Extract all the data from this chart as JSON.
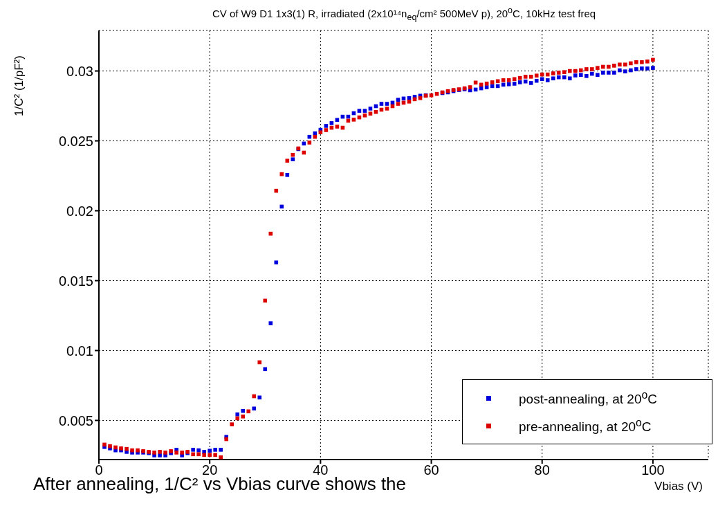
{
  "chart_data": {
    "type": "scatter",
    "title": "CV of W9 D1 1x3(1) R, irradiated (2x10¹⁴n$_{eq}$/cm² 500MeV p), 20$^{o}$C, 10kHz test freq",
    "xlabel": "Vbias (V)",
    "ylabel": "1/C² (1/pF²)",
    "annotations": [
      "After annealing, 1/C² vs Vbias curve shows the"
    ],
    "x": [
      1,
      2,
      3,
      4,
      5,
      6,
      7,
      8,
      9,
      10,
      11,
      12,
      13,
      14,
      15,
      16,
      17,
      18,
      19,
      20,
      21,
      22,
      23,
      24,
      25,
      26,
      27,
      28,
      29,
      30,
      31,
      32,
      33,
      34,
      35,
      36,
      37,
      38,
      39,
      40,
      41,
      42,
      43,
      44,
      45,
      46,
      47,
      48,
      49,
      50,
      51,
      52,
      53,
      54,
      55,
      56,
      57,
      58,
      59,
      60,
      61,
      62,
      63,
      64,
      65,
      66,
      67,
      68,
      69,
      70,
      71,
      72,
      73,
      74,
      75,
      76,
      77,
      78,
      79,
      80,
      81,
      82,
      83,
      84,
      85,
      86,
      87,
      88,
      89,
      90,
      91,
      92,
      93,
      94,
      95,
      96,
      97,
      98,
      99,
      100
    ],
    "series": [
      {
        "name": "post-annealing, at 20$^{o}$C",
        "color": "#0000dd",
        "values": [
          0.0031,
          0.003,
          0.00286,
          0.00286,
          0.00275,
          0.0027,
          0.0027,
          0.0027,
          0.00266,
          0.0025,
          0.0025,
          0.0025,
          0.00266,
          0.0029,
          0.0025,
          0.00266,
          0.0029,
          0.00286,
          0.00275,
          0.00283,
          0.0029,
          0.0029,
          0.00382,
          null,
          0.00543,
          0.00568,
          null,
          0.00585,
          0.00664,
          0.00867,
          0.01195,
          0.0163,
          0.0203,
          0.02256,
          0.02368,
          0.02441,
          0.02481,
          0.02529,
          0.02554,
          0.02579,
          0.02607,
          0.02627,
          0.0265,
          0.02673,
          0.02673,
          0.02698,
          0.02715,
          0.02715,
          0.02731,
          0.02748,
          0.02765,
          0.02765,
          0.02773,
          0.02794,
          0.02803,
          0.02806,
          0.02815,
          0.02823,
          0.02826,
          null,
          null,
          0.02842,
          0.02847,
          0.02856,
          0.02864,
          0.02869,
          0.02862,
          0.02867,
          0.02876,
          0.02884,
          0.02892,
          0.02892,
          0.02902,
          0.02905,
          0.02909,
          0.02919,
          0.02925,
          0.02914,
          0.0293,
          0.02942,
          0.02934,
          0.02947,
          0.02955,
          0.02955,
          0.02947,
          0.02968,
          0.02972,
          0.02964,
          0.0298,
          0.02972,
          0.02988,
          0.02988,
          0.02988,
          0.03005,
          0.02997,
          0.03005,
          0.03013,
          0.03018,
          0.03018,
          0.03022
        ]
      },
      {
        "name": "pre-annealing, at 20$^{o}$C",
        "color": "#dd0000",
        "values": [
          0.00327,
          0.00316,
          0.00307,
          0.003,
          0.00296,
          0.00286,
          0.00286,
          0.0028,
          0.00275,
          0.0027,
          0.00275,
          0.0027,
          0.0028,
          0.0027,
          0.0027,
          0.00275,
          0.00258,
          0.00258,
          0.00253,
          0.00253,
          0.00253,
          0.00236,
          0.00366,
          0.00472,
          0.00515,
          0.00528,
          0.00565,
          0.00673,
          0.00916,
          0.01357,
          0.01836,
          0.02143,
          0.02262,
          0.02358,
          0.024,
          0.02446,
          0.02416,
          0.02488,
          0.02529,
          0.02561,
          0.02577,
          0.02594,
          0.02602,
          0.02594,
          0.02644,
          0.02652,
          0.02668,
          0.02682,
          0.02695,
          0.02707,
          0.02723,
          0.02731,
          0.02748,
          0.02765,
          0.02773,
          0.02781,
          0.02798,
          0.02806,
          0.02823,
          0.02826,
          0.02836,
          0.02847,
          0.02856,
          0.02864,
          0.02869,
          0.02876,
          0.02884,
          0.02917,
          0.02902,
          0.0291,
          0.02919,
          0.02927,
          0.02934,
          0.02934,
          0.02942,
          0.0295,
          0.02959,
          0.02959,
          0.02967,
          0.02975,
          0.02975,
          0.02983,
          0.02988,
          0.02992,
          0.03,
          0.03,
          0.03005,
          0.03013,
          0.03013,
          0.03022,
          0.0303,
          0.0303,
          0.03038,
          0.03046,
          0.03046,
          0.03055,
          0.03063,
          0.03063,
          0.03068,
          0.0308
        ]
      }
    ],
    "xlim": [
      0,
      110
    ],
    "xticks": [
      0,
      20,
      40,
      60,
      80,
      100
    ],
    "ylim": [
      0.0022,
      0.0329
    ],
    "yticks": [
      0.005,
      0.01,
      0.015,
      0.02,
      0.025,
      0.03
    ],
    "grid": true,
    "legend": "bottom right",
    "marker": "square"
  }
}
